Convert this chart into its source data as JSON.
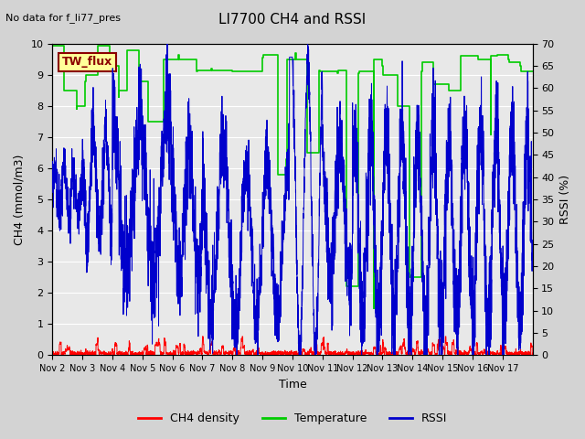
{
  "title": "LI7700 CH4 and RSSI",
  "top_left_text": "No data for f_li77_pres",
  "legend_box_text": "TW_flux",
  "xlabel": "Time",
  "ylabel_left": "CH4 (mmol/m3)",
  "ylabel_right": "RSSI (%)",
  "xlim": [
    0,
    16
  ],
  "ylim_left": [
    0,
    10.0
  ],
  "ylim_right": [
    0,
    70
  ],
  "xtick_labels": [
    "Nov 2",
    "Nov 3",
    "Nov 4",
    "Nov 5",
    "Nov 6",
    "Nov 7",
    "Nov 8",
    "Nov 9",
    "Nov 10",
    "Nov 11",
    "Nov 12",
    "Nov 13",
    "Nov 14",
    "Nov 15",
    "Nov 16",
    "Nov 17"
  ],
  "xtick_positions": [
    0,
    1,
    2,
    3,
    4,
    5,
    6,
    7,
    8,
    9,
    10,
    11,
    12,
    13,
    14,
    15
  ],
  "ytick_left": [
    0.0,
    1.0,
    2.0,
    3.0,
    4.0,
    5.0,
    6.0,
    7.0,
    8.0,
    9.0,
    10.0
  ],
  "ytick_right": [
    0,
    5,
    10,
    15,
    20,
    25,
    30,
    35,
    40,
    45,
    50,
    55,
    60,
    65,
    70
  ],
  "background_color": "#d3d3d3",
  "plot_bg_color": "#e8e8e8",
  "color_ch4": "#ff0000",
  "color_temp": "#00cc00",
  "color_rssi": "#0000cc",
  "legend_entries": [
    "CH4 density",
    "Temperature",
    "RSSI"
  ],
  "legend_colors": [
    "#ff0000",
    "#00cc00",
    "#0000cc"
  ]
}
